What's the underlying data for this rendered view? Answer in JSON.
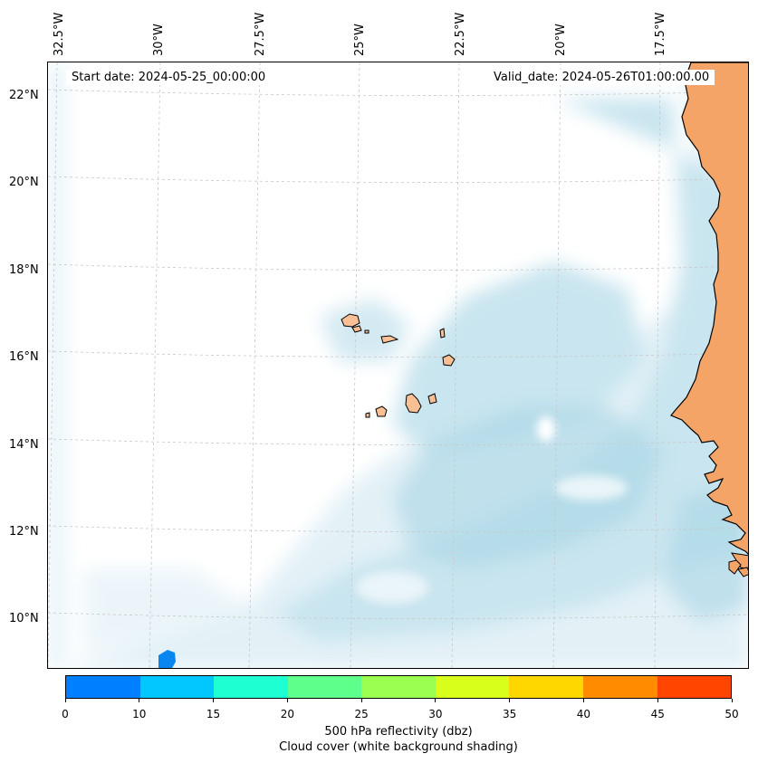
{
  "map": {
    "start_date": "Start date: 2024-05-25_00:00:00",
    "valid_date": "Valid_date: 2024-05-26T01:00:00.00",
    "lon_labels": [
      "32.5°W",
      "30°W",
      "27.5°W",
      "25°W",
      "22.5°W",
      "20°W",
      "17.5°W"
    ],
    "lat_labels": [
      "22°N",
      "20°N",
      "18°N",
      "16°N",
      "14°N",
      "12°N",
      "10°N"
    ],
    "colors": {
      "cloud_light": "#e3f1f7",
      "cloud_mid": "#c9e5ef",
      "cloud_dark": "#a9d5e5",
      "land": "#f5a468",
      "island": "#f8c094",
      "reflectivity_blob": "#0a86f0"
    },
    "layers": [
      "cloud-cover-shading",
      "coastline",
      "cape-verde-islands",
      "graticule"
    ]
  },
  "colorbar": {
    "ticks": [
      "0",
      "10",
      "15",
      "20",
      "25",
      "30",
      "35",
      "40",
      "45",
      "50"
    ],
    "colors": [
      "#0080ff",
      "#00c8ff",
      "#1effd2",
      "#5fff8c",
      "#9aff50",
      "#d8ff1c",
      "#ffd700",
      "#ff8c00",
      "#ff4500"
    ],
    "label_line1": "500 hPa reflectivity (dbz)",
    "label_line2": "Cloud cover (white background shading)"
  }
}
